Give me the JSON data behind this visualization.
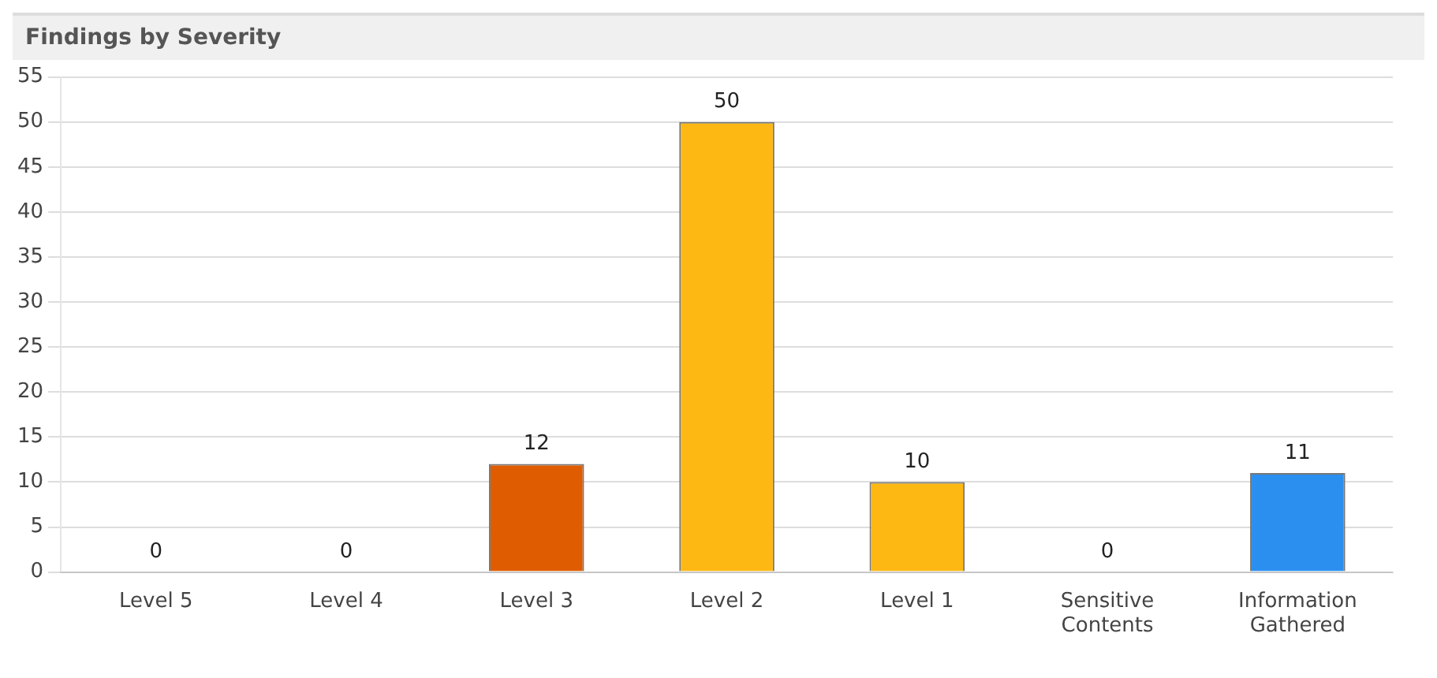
{
  "chart_data": {
    "type": "bar",
    "title": "Findings by Severity",
    "categories": [
      "Level 5",
      "Level 4",
      "Level 3",
      "Level 2",
      "Level 1",
      "Sensitive Contents",
      "Information Gathered"
    ],
    "values": [
      0,
      0,
      12,
      50,
      10,
      0,
      11
    ],
    "colors": [
      "#800000",
      "#800000",
      "#e05c00",
      "#fdb813",
      "#fdb813",
      "#b89a00",
      "#2b8ff0"
    ],
    "ylim": [
      0,
      55
    ],
    "yticks": [
      0,
      5,
      10,
      15,
      20,
      25,
      30,
      35,
      40,
      45,
      50,
      55
    ],
    "grid": "y",
    "data_labels": true,
    "legend": false
  }
}
